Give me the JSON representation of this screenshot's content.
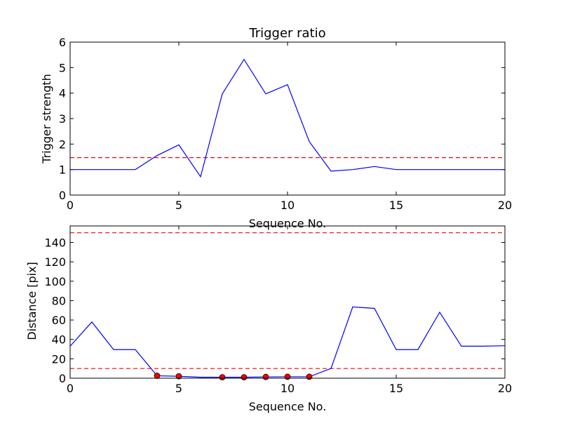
{
  "figure": {
    "background": "#ffffff"
  },
  "chart_data": [
    {
      "type": "line",
      "title": "Trigger ratio",
      "xlabel": "Sequence No.",
      "ylabel": "Trigger strength",
      "xlim": [
        0,
        20
      ],
      "ylim": [
        0,
        6
      ],
      "x_ticks": [
        0,
        5,
        10,
        15,
        20
      ],
      "y_ticks": [
        0,
        1,
        2,
        3,
        4,
        5,
        6
      ],
      "grid": false,
      "series": [
        {
          "style": "line",
          "color": "#0000ff",
          "x": [
            0,
            1,
            2,
            3,
            4,
            5,
            6,
            7,
            8,
            9,
            10,
            11,
            12,
            13,
            14,
            15,
            16,
            17,
            18,
            19,
            20
          ],
          "y": [
            1.0,
            1.0,
            1.0,
            1.0,
            1.55,
            1.97,
            0.72,
            3.97,
            5.32,
            3.97,
            4.33,
            2.1,
            0.94,
            1.0,
            1.12,
            1.0,
            1.0,
            1.0,
            1.0,
            1.0,
            1.0
          ]
        }
      ],
      "hlines": [
        {
          "y": 1.47,
          "color": "#ff0000",
          "style": "dashed"
        }
      ]
    },
    {
      "type": "line",
      "title": "",
      "xlabel": "Sequence No.",
      "ylabel": "Distance [pix]",
      "xlim": [
        0,
        20
      ],
      "ylim": [
        0,
        157
      ],
      "x_ticks": [
        0,
        5,
        10,
        15,
        20
      ],
      "y_ticks": [
        0,
        20,
        40,
        60,
        80,
        100,
        120,
        140
      ],
      "grid": false,
      "series": [
        {
          "style": "line",
          "color": "#0000ff",
          "x": [
            0,
            1,
            2,
            3,
            4,
            5,
            6,
            7,
            8,
            9,
            10,
            11,
            12,
            13,
            14,
            15,
            16,
            17,
            18,
            19,
            20
          ],
          "y": [
            33,
            58,
            29.5,
            29.5,
            2.5,
            2,
            1,
            1,
            1,
            1.3,
            1.5,
            1.5,
            10,
            73.5,
            72,
            29.5,
            29.5,
            68,
            33,
            33,
            33.5
          ]
        },
        {
          "style": "markers",
          "color": "#ff0000",
          "x": [
            4,
            5,
            7,
            8,
            9,
            10,
            11
          ],
          "y": [
            2.5,
            2,
            1,
            1,
            1.3,
            1.5,
            1.5
          ]
        }
      ],
      "hlines": [
        {
          "y": 150,
          "color": "#ff0000",
          "style": "dashed"
        },
        {
          "y": 10,
          "color": "#ff0000",
          "style": "dashed"
        }
      ]
    }
  ]
}
